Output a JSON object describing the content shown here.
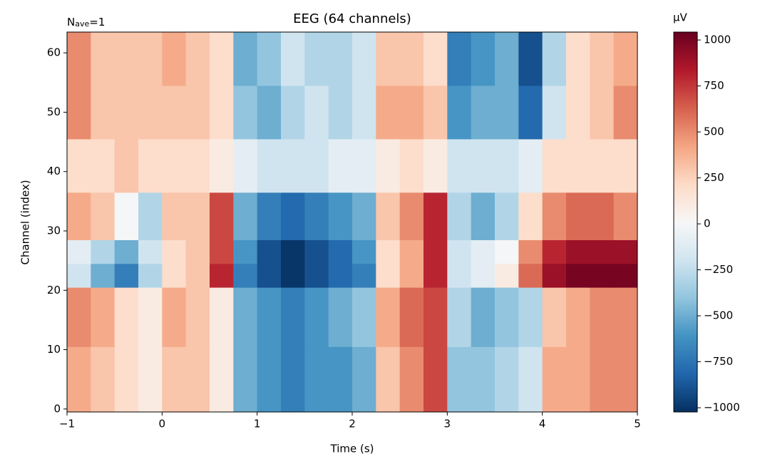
{
  "chart_data": {
    "type": "heatmap",
    "title": "EEG (64 channels)",
    "annotation": {
      "base": "N",
      "sub": "ave",
      "rest": "=1"
    },
    "xlabel": "Time (s)",
    "ylabel": "Channel (index)",
    "colorbar_label": "µV",
    "colormap": "RdBu_r",
    "clim": [
      -1023,
      1043
    ],
    "cticks": [
      {
        "value": -1000,
        "label": "−1000"
      },
      {
        "value": -750,
        "label": "−750"
      },
      {
        "value": -500,
        "label": "−500"
      },
      {
        "value": -250,
        "label": "−250"
      },
      0,
      250,
      500,
      750,
      1000
    ],
    "xlim": [
      -1,
      5
    ],
    "xticks": [
      {
        "value": -1,
        "label": "−1"
      },
      0,
      1,
      2,
      3,
      4,
      5
    ],
    "ylim": [
      -0.5,
      63.5
    ],
    "yticks": [
      0,
      10,
      20,
      30,
      40,
      50,
      60
    ],
    "x_edges": [
      -1,
      -0.75,
      -0.5,
      -0.25,
      0,
      0.25,
      0.5,
      0.75,
      1,
      1.25,
      1.5,
      1.75,
      2,
      2.25,
      2.5,
      2.75,
      3,
      3.25,
      3.5,
      3.75,
      4,
      4.25,
      4.5,
      4.75,
      5
    ],
    "y_edges": [
      -0.5,
      10.5,
      20.5,
      24.5,
      28.5,
      36.5,
      45.5,
      54.5,
      63.5
    ],
    "values": [
      [
        400,
        300,
        200,
        100,
        300,
        300,
        100,
        -500,
        -600,
        -700,
        -600,
        -600,
        -500,
        300,
        500,
        700,
        -400,
        -400,
        -300,
        -200,
        400,
        400,
        500,
        500
      ],
      [
        500,
        400,
        200,
        100,
        400,
        300,
        100,
        -500,
        -600,
        -700,
        -600,
        -500,
        -400,
        400,
        600,
        700,
        -300,
        -500,
        -400,
        -300,
        300,
        400,
        500,
        500
      ],
      [
        -200,
        -500,
        -700,
        -300,
        200,
        300,
        800,
        -700,
        -900,
        -1000,
        -900,
        -800,
        -700,
        200,
        400,
        800,
        -200,
        -100,
        100,
        600,
        900,
        1000,
        1000,
        1000
      ],
      [
        -100,
        -300,
        -500,
        -200,
        200,
        300,
        700,
        -600,
        -900,
        -1000,
        -900,
        -800,
        -600,
        200,
        400,
        800,
        -200,
        -100,
        0,
        500,
        800,
        900,
        900,
        900
      ],
      [
        400,
        300,
        0,
        -300,
        300,
        300,
        700,
        -500,
        -700,
        -800,
        -700,
        -600,
        -500,
        300,
        500,
        800,
        -300,
        -500,
        -300,
        200,
        500,
        600,
        600,
        500
      ],
      [
        200,
        200,
        300,
        200,
        200,
        200,
        100,
        -100,
        -200,
        -200,
        -200,
        -100,
        -100,
        100,
        200,
        100,
        -200,
        -200,
        -200,
        -100,
        200,
        200,
        200,
        200
      ],
      [
        500,
        300,
        300,
        300,
        300,
        300,
        200,
        -400,
        -500,
        -300,
        -200,
        -300,
        -200,
        400,
        400,
        300,
        -600,
        -500,
        -500,
        -800,
        -200,
        200,
        300,
        500
      ],
      [
        500,
        300,
        300,
        300,
        400,
        300,
        200,
        -500,
        -400,
        -200,
        -300,
        -300,
        -200,
        300,
        300,
        200,
        -700,
        -600,
        -500,
        -900,
        -300,
        200,
        300,
        400
      ]
    ]
  }
}
